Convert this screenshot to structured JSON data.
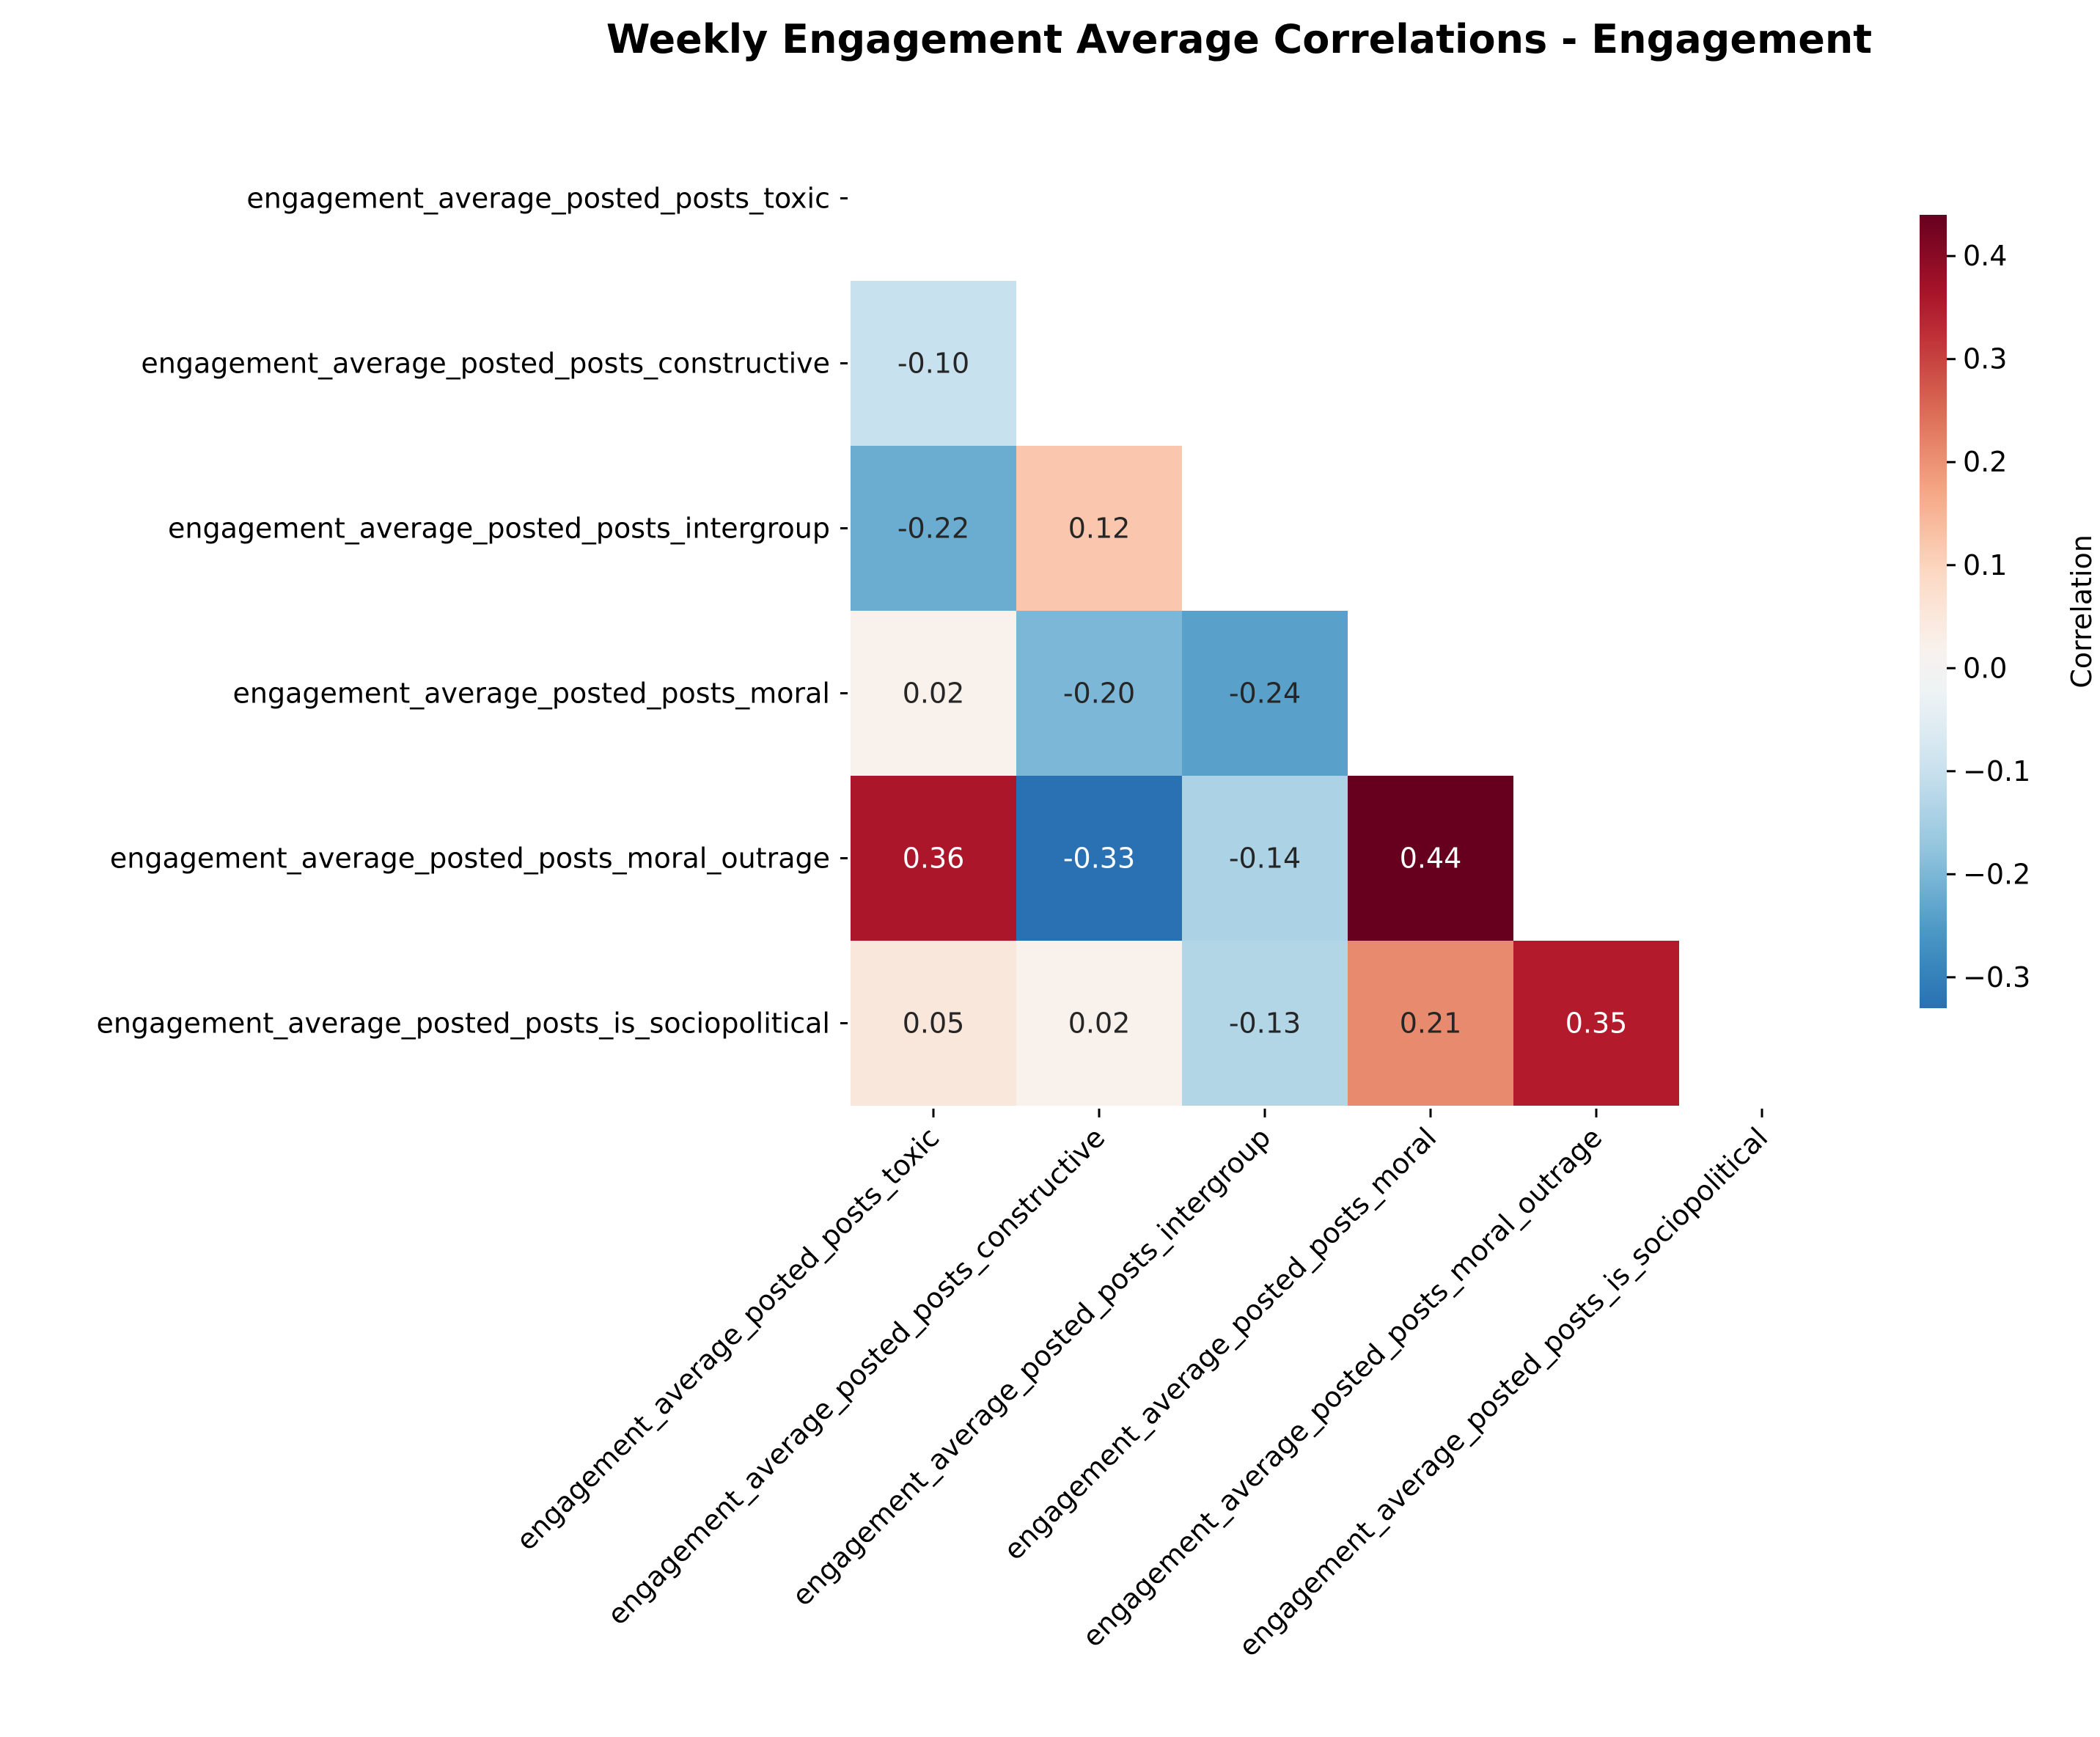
{
  "chart_data": {
    "type": "heatmap",
    "title": "Weekly Engagement Average Correlations - Engagement",
    "variables": [
      "engagement_average_posted_posts_toxic",
      "engagement_average_posted_posts_constructive",
      "engagement_average_posted_posts_intergroup",
      "engagement_average_posted_posts_moral",
      "engagement_average_posted_posts_moral_outrage",
      "engagement_average_posted_posts_is_sociopolitical"
    ],
    "mask": "upper-triangle-including-diagonal",
    "values": [
      [
        null,
        null,
        null,
        null,
        null,
        null
      ],
      [
        -0.1,
        null,
        null,
        null,
        null,
        null
      ],
      [
        -0.22,
        0.12,
        null,
        null,
        null,
        null
      ],
      [
        0.02,
        -0.2,
        -0.24,
        null,
        null,
        null
      ],
      [
        0.36,
        -0.33,
        -0.14,
        0.44,
        null,
        null
      ],
      [
        0.05,
        0.02,
        -0.13,
        0.21,
        0.35,
        null
      ]
    ],
    "cell_labels": [
      [
        "",
        "",
        "",
        "",
        "",
        ""
      ],
      [
        "-0.10",
        "",
        "",
        "",
        "",
        ""
      ],
      [
        "-0.22",
        "0.12",
        "",
        "",
        "",
        ""
      ],
      [
        "0.02",
        "-0.20",
        "-0.24",
        "",
        "",
        ""
      ],
      [
        "0.36",
        "-0.33",
        "-0.14",
        "0.44",
        "",
        ""
      ],
      [
        "0.05",
        "0.02",
        "-0.13",
        "0.21",
        "0.35",
        ""
      ]
    ],
    "colormap": "RdBu_r",
    "colorbar": {
      "label": "Correlation",
      "range": [
        -0.33,
        0.44
      ],
      "ticks": [
        -0.3,
        -0.2,
        -0.1,
        0.0,
        0.1,
        0.2,
        0.3,
        0.4
      ],
      "tick_labels": [
        "−0.3",
        "−0.2",
        "−0.1",
        "0.0",
        "0.1",
        "0.2",
        "0.3",
        "0.4"
      ]
    },
    "grid": false,
    "legend": "colorbar-right"
  }
}
